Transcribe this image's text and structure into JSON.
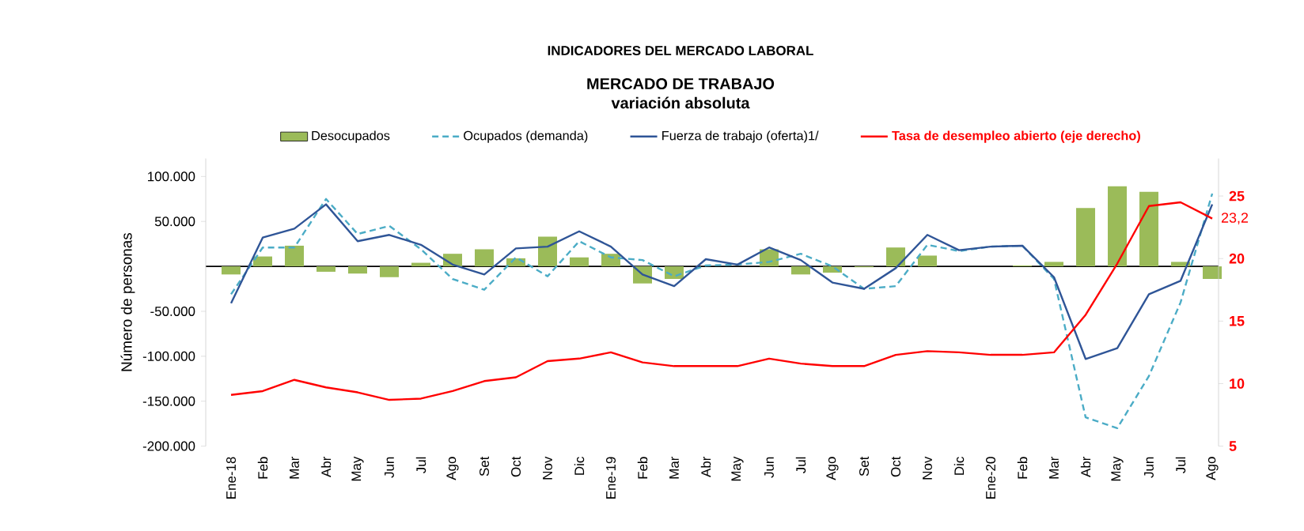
{
  "chart_data": {
    "type": "bar",
    "title": "INDICADORES DEL MERCADO LABORAL",
    "subtitle": "MERCADO DE TRABAJO",
    "annotations": [
      "variación absoluta"
    ],
    "ylabel": "Número de personas",
    "categories": [
      "Ene-18",
      "Feb",
      "Mar",
      "Abr",
      "May",
      "Jun",
      "Jul",
      "Ago",
      "Set",
      "Oct",
      "Nov",
      "Dic",
      "Ene-19",
      "Feb",
      "Mar",
      "Abr",
      "May",
      "Jun",
      "Jul",
      "Ago",
      "Set",
      "Oct",
      "Nov",
      "Dic",
      "Ene-20",
      "Feb",
      "Mar",
      "Abr",
      "May",
      "Jun",
      "Jul",
      "Ago"
    ],
    "series": [
      {
        "name": "Desocupados",
        "type": "bar",
        "color": "#9bbb59",
        "values": [
          -9000,
          11000,
          23000,
          -6000,
          -8000,
          -12000,
          4000,
          14000,
          19000,
          9000,
          33000,
          10000,
          14000,
          -19000,
          -14000,
          0,
          0,
          19000,
          -9000,
          -7000,
          -1000,
          21000,
          12000,
          0,
          0,
          1000,
          5000,
          65000,
          89000,
          83000,
          5000,
          -14000
        ]
      },
      {
        "name": "Ocupados (demanda)",
        "type": "line",
        "line_style": "dashed",
        "color": "#4bacc6",
        "values": [
          -31000,
          21000,
          21000,
          75000,
          36000,
          45000,
          19000,
          -14000,
          -26000,
          10000,
          -11000,
          28000,
          10000,
          7000,
          -11000,
          1000,
          2000,
          5000,
          14000,
          0,
          -25000,
          -22000,
          24000,
          17000,
          22000,
          23000,
          -14000,
          -168000,
          -180000,
          -122000,
          -40000,
          81000
        ]
      },
      {
        "name": "Fuerza de trabajo (oferta)1/",
        "type": "line",
        "line_style": "solid",
        "color": "#2f5597",
        "values": [
          -41000,
          32000,
          42000,
          69000,
          28000,
          35000,
          24000,
          2000,
          -9000,
          20000,
          22000,
          39000,
          22000,
          -9000,
          -22000,
          8000,
          2000,
          21000,
          7000,
          -18000,
          -25000,
          -2000,
          35000,
          18000,
          22000,
          23000,
          -12000,
          -103000,
          -91000,
          -31000,
          -16000,
          69000
        ]
      },
      {
        "name": "Tasa de desempleo abierto (eje derecho)",
        "type": "line",
        "line_style": "solid",
        "axis": "y2",
        "color": "#ff0000",
        "values": [
          9.1,
          9.4,
          10.3,
          9.7,
          9.3,
          8.7,
          8.8,
          9.4,
          10.2,
          10.5,
          11.8,
          12.0,
          12.5,
          11.7,
          11.4,
          11.4,
          11.4,
          12.0,
          11.6,
          11.4,
          11.4,
          12.3,
          12.6,
          12.5,
          12.3,
          12.3,
          12.5,
          15.5,
          19.6,
          24.2,
          24.5,
          23.2
        ],
        "value_labels": [
          null,
          null,
          null,
          null,
          null,
          null,
          null,
          null,
          null,
          null,
          null,
          null,
          null,
          null,
          null,
          null,
          null,
          null,
          null,
          null,
          null,
          null,
          null,
          null,
          null,
          null,
          null,
          null,
          null,
          null,
          null,
          "23,2"
        ]
      }
    ],
    "ylim": [
      -200000,
      120000
    ],
    "yticks": [
      {
        "value": -200000,
        "label": "-200.000"
      },
      {
        "value": -150000,
        "label": "-150.000"
      },
      {
        "value": -100000,
        "label": "-100.000"
      },
      {
        "value": -50000,
        "label": "-50.000"
      },
      {
        "value": 50000,
        "label": "50.000"
      },
      {
        "value": 100000,
        "label": "100.000"
      }
    ],
    "y2lim": [
      5,
      28
    ],
    "y2ticks": [
      5,
      10,
      15,
      20,
      25
    ],
    "legend": "top",
    "grid": false,
    "marker": "none"
  }
}
